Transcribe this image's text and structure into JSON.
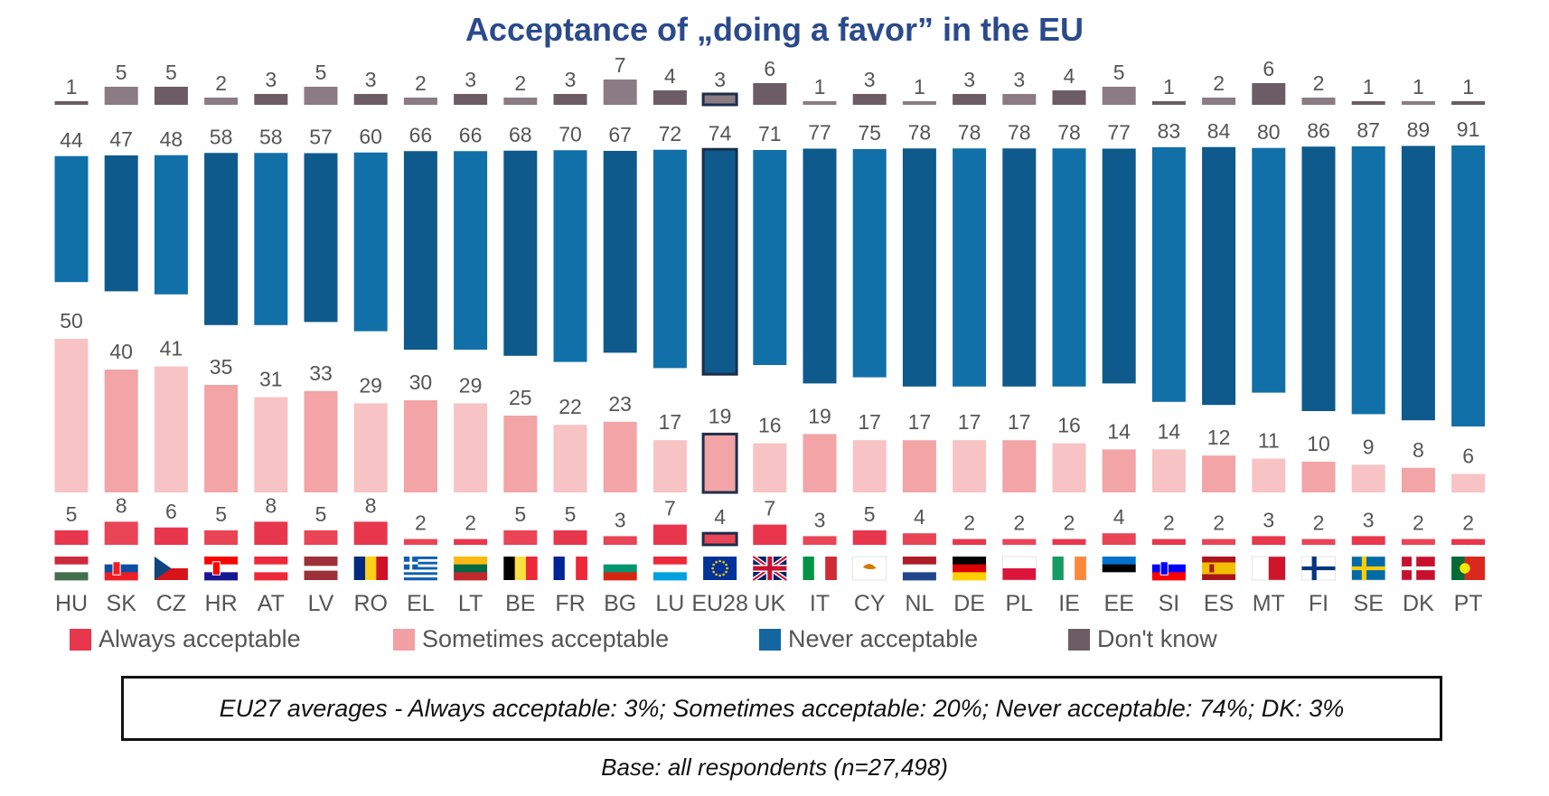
{
  "title": "Acceptance of „doing a favor” in the EU",
  "legend": [
    {
      "label": "Always acceptable",
      "color": "#e8364d"
    },
    {
      "label": "Sometimes acceptable",
      "color": "#f2a0a3"
    },
    {
      "label": "Never acceptable",
      "color": "#1366a0"
    },
    {
      "label": "Don't know",
      "color": "#6b5d63"
    }
  ],
  "note": "EU27 averages - Always acceptable: 3%; Sometimes acceptable: 20%; Never acceptable: 74%; DK: 3%",
  "base": "Base: all respondents (n=27,498)",
  "chart_data": {
    "type": "bar",
    "categories": [
      "HU",
      "SK",
      "CZ",
      "HR",
      "AT",
      "LV",
      "RO",
      "EL",
      "LT",
      "BE",
      "FR",
      "BG",
      "LU",
      "EU28",
      "UK",
      "IT",
      "CY",
      "NL",
      "DE",
      "PL",
      "IE",
      "EE",
      "SI",
      "ES",
      "MT",
      "FI",
      "SE",
      "DK",
      "PT"
    ],
    "highlight": "EU28",
    "series": [
      {
        "name": "Always acceptable",
        "color": "#e8364d",
        "values": [
          5,
          8,
          6,
          5,
          8,
          5,
          8,
          2,
          2,
          5,
          5,
          3,
          7,
          4,
          7,
          3,
          5,
          4,
          2,
          2,
          2,
          4,
          2,
          2,
          3,
          2,
          3,
          2,
          2
        ]
      },
      {
        "name": "Sometimes acceptable",
        "color": "#f2a0a3",
        "values": [
          50,
          40,
          41,
          35,
          31,
          33,
          29,
          30,
          29,
          25,
          22,
          23,
          17,
          19,
          16,
          19,
          17,
          17,
          17,
          17,
          16,
          14,
          14,
          12,
          11,
          10,
          9,
          8,
          6
        ]
      },
      {
        "name": "Never acceptable",
        "color": "#1366a0",
        "values": [
          44,
          47,
          48,
          58,
          58,
          57,
          60,
          66,
          66,
          68,
          70,
          67,
          72,
          74,
          71,
          77,
          75,
          78,
          78,
          78,
          78,
          77,
          83,
          84,
          80,
          86,
          87,
          89,
          91
        ]
      },
      {
        "name": "Don't know",
        "color": "#6b5d63",
        "values": [
          1,
          5,
          5,
          2,
          3,
          5,
          3,
          2,
          3,
          2,
          3,
          7,
          4,
          3,
          6,
          1,
          3,
          1,
          3,
          3,
          4,
          5,
          1,
          2,
          6,
          2,
          1,
          1,
          1
        ]
      }
    ],
    "flags": {
      "HU": {
        "type": "h",
        "colors": [
          "#cd2a3e",
          "#ffffff",
          "#436f4d"
        ]
      },
      "SK": {
        "type": "h",
        "colors": [
          "#ffffff",
          "#0b4ea2",
          "#ee1c25"
        ],
        "emblem": "#ee1c25"
      },
      "CZ": {
        "type": "cz",
        "colors": [
          "#ffffff",
          "#d7141a",
          "#11457e"
        ]
      },
      "HR": {
        "type": "h",
        "colors": [
          "#ff0000",
          "#ffffff",
          "#171796"
        ],
        "emblem": "#ff0000"
      },
      "AT": {
        "type": "h",
        "colors": [
          "#ed2939",
          "#ffffff",
          "#ed2939"
        ]
      },
      "LV": {
        "type": "hw",
        "colors": [
          "#9e3039",
          "#ffffff",
          "#9e3039"
        ]
      },
      "RO": {
        "type": "v",
        "colors": [
          "#002b7f",
          "#fcd116",
          "#ce1126"
        ]
      },
      "EL": {
        "type": "gr",
        "colors": [
          "#0d5eaf",
          "#ffffff"
        ]
      },
      "LT": {
        "type": "h",
        "colors": [
          "#fdb913",
          "#006a44",
          "#c1272d"
        ]
      },
      "BE": {
        "type": "v",
        "colors": [
          "#000000",
          "#fae042",
          "#ed2939"
        ]
      },
      "FR": {
        "type": "v",
        "colors": [
          "#002395",
          "#ffffff",
          "#ed2939"
        ]
      },
      "BG": {
        "type": "h",
        "colors": [
          "#ffffff",
          "#00966e",
          "#d62612"
        ]
      },
      "LU": {
        "type": "h",
        "colors": [
          "#ed2939",
          "#ffffff",
          "#00a1de"
        ]
      },
      "EU28": {
        "type": "eu",
        "colors": [
          "#003399",
          "#ffcc00"
        ]
      },
      "UK": {
        "type": "uk",
        "colors": [
          "#012169",
          "#ffffff",
          "#c8102e"
        ]
      },
      "IT": {
        "type": "v",
        "colors": [
          "#009246",
          "#ffffff",
          "#ce2b37"
        ]
      },
      "CY": {
        "type": "cy",
        "colors": [
          "#ffffff",
          "#d57800"
        ]
      },
      "NL": {
        "type": "h",
        "colors": [
          "#ae1c28",
          "#ffffff",
          "#21468b"
        ]
      },
      "DE": {
        "type": "h",
        "colors": [
          "#000000",
          "#dd0000",
          "#ffce00"
        ]
      },
      "PL": {
        "type": "h2",
        "colors": [
          "#ffffff",
          "#dc143c"
        ]
      },
      "IE": {
        "type": "v",
        "colors": [
          "#169b62",
          "#ffffff",
          "#ff883e"
        ]
      },
      "EE": {
        "type": "h",
        "colors": [
          "#0072ce",
          "#000000",
          "#ffffff"
        ]
      },
      "SI": {
        "type": "h",
        "colors": [
          "#ffffff",
          "#0000ff",
          "#ff0000"
        ],
        "emblem": "#0000ff"
      },
      "ES": {
        "type": "es",
        "colors": [
          "#aa151b",
          "#f1bf00"
        ]
      },
      "MT": {
        "type": "v2",
        "colors": [
          "#ffffff",
          "#cf142b"
        ]
      },
      "FI": {
        "type": "nordic",
        "colors": [
          "#ffffff",
          "#003580"
        ]
      },
      "SE": {
        "type": "nordic",
        "colors": [
          "#006aa7",
          "#fecc00"
        ]
      },
      "DK": {
        "type": "nordic",
        "colors": [
          "#c8102e",
          "#ffffff"
        ]
      },
      "PT": {
        "type": "pt",
        "colors": [
          "#046a38",
          "#da291c",
          "#ffe900"
        ]
      }
    }
  }
}
